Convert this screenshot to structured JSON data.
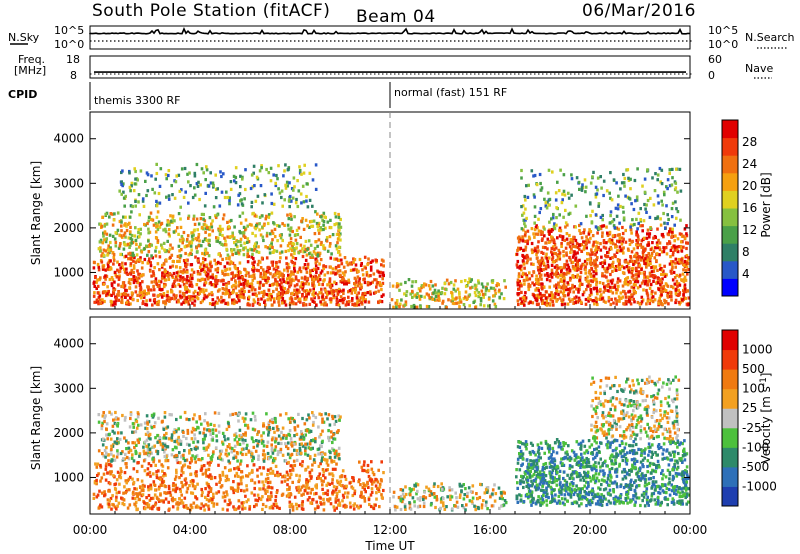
{
  "header": {
    "station_title": "South Pole Station (fitACF)",
    "beam": "Beam 04",
    "date": "06/Mar/2016"
  },
  "top_panels": {
    "sky": {
      "label": "N.Sky",
      "ticks": [
        "10^5",
        "10^0"
      ],
      "right_label": "N.Search",
      "right_ticks": [
        "10^5",
        "10^0"
      ]
    },
    "freq": {
      "label_line1": "Freq.",
      "label_line2": "[MHz]",
      "ticks": [
        "18",
        "8"
      ],
      "right_label": "Nave",
      "right_ticks": [
        "60",
        "0"
      ],
      "yrange": [
        8,
        18
      ],
      "freq_value_mhz": 10.7
    },
    "cpid": {
      "label": "CPID",
      "segments": [
        {
          "name": "themis 3300 RF",
          "start_hour": 0
        },
        {
          "name": "normal (fast) 151 RF",
          "start_hour": 12
        }
      ]
    }
  },
  "x_axis": {
    "label": "Time UT",
    "tick_labels": [
      "00:00",
      "04:00",
      "08:00",
      "12:00",
      "16:00",
      "20:00",
      "00:00"
    ],
    "range_hours": [
      0,
      24
    ]
  },
  "chart_data": [
    {
      "type": "heatmap",
      "name": "power",
      "ylabel": "Slant Range [km]",
      "ylim": [
        180,
        4600
      ],
      "yticks": [
        1000,
        2000,
        3000,
        4000
      ],
      "xlim": [
        0,
        24
      ],
      "colorbar": {
        "label": "Power [dB]",
        "range": [
          0,
          32
        ],
        "tick_labels": [
          "4",
          "8",
          "12",
          "16",
          "20",
          "24",
          "28"
        ],
        "tick_values": [
          4,
          8,
          12,
          16,
          20,
          24,
          28
        ],
        "colors": [
          "#0000ff",
          "#2858c8",
          "#2f7f66",
          "#4aa048",
          "#86c040",
          "#e0d020",
          "#f5a010",
          "#f07010",
          "#f03a0a",
          "#e00000"
        ]
      },
      "features": [
        {
          "hours": [
            0.1,
            11.7
          ],
          "range_km": [
            300,
            1400
          ],
          "level": "strong"
        },
        {
          "hours": [
            0.3,
            10.0
          ],
          "range_km": [
            1400,
            2400
          ],
          "level": "medium"
        },
        {
          "hours": [
            1.0,
            9.0
          ],
          "range_km": [
            2500,
            3500
          ],
          "level": "weak"
        },
        {
          "hours": [
            12.0,
            16.6
          ],
          "range_km": [
            250,
            900
          ],
          "level": "medium"
        },
        {
          "hours": [
            17.0,
            23.9
          ],
          "range_km": [
            300,
            2100
          ],
          "level": "strong"
        },
        {
          "hours": [
            17.2,
            23.6
          ],
          "range_km": [
            2000,
            3400
          ],
          "level": "weak"
        }
      ]
    },
    {
      "type": "heatmap",
      "name": "velocity",
      "ylabel": "Slant Range [km]",
      "ylim": [
        180,
        4600
      ],
      "yticks": [
        1000,
        2000,
        3000,
        4000
      ],
      "xlim": [
        0,
        24
      ],
      "colorbar": {
        "label": "Velocity [m s^-1]",
        "range": [
          -1200,
          1200
        ],
        "tick_labels": [
          "1000",
          "500",
          "100",
          "25",
          "-25",
          "-100",
          "-500",
          "-1000"
        ],
        "colors": [
          "#1f3fb0",
          "#2e70b8",
          "#2e8a6a",
          "#4cc03c",
          "#c0c0c0",
          "#f2a020",
          "#f07a10",
          "#f03a0a",
          "#e00000"
        ]
      },
      "features": [
        {
          "hours": [
            0.1,
            11.7
          ],
          "range_km": [
            300,
            1400
          ],
          "direction": "away",
          "speed": "slow"
        },
        {
          "hours": [
            0.3,
            10.0
          ],
          "range_km": [
            1400,
            2500
          ],
          "direction": "mixed",
          "speed": "slow"
        },
        {
          "hours": [
            12.0,
            16.6
          ],
          "range_km": [
            300,
            900
          ],
          "direction": "mixed",
          "speed": "slow"
        },
        {
          "hours": [
            17.0,
            23.9
          ],
          "range_km": [
            400,
            1900
          ],
          "direction": "toward",
          "speed": "moderate"
        },
        {
          "hours": [
            20.0,
            23.5
          ],
          "range_km": [
            1900,
            3300
          ],
          "direction": "mixed",
          "speed": "slow"
        }
      ]
    }
  ]
}
